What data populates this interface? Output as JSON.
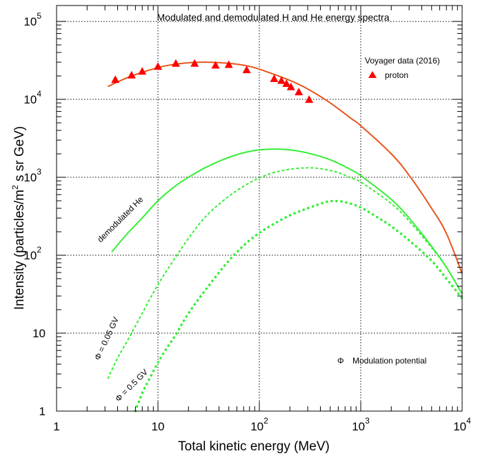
{
  "chart_data": {
    "type": "line",
    "title": "Modulated and demodulated H and He energy spectra",
    "xlabel": "Total kinetic energy (MeV)",
    "ylabel": "Intensity (particles/m² s sr GeV)",
    "x_scale": "log",
    "y_scale": "log",
    "xlim": [
      1,
      10000
    ],
    "ylim": [
      1,
      160000
    ],
    "grid": true,
    "x_ticks": [
      {
        "value": 1,
        "base": "1",
        "exp": ""
      },
      {
        "value": 10,
        "base": "10",
        "exp": ""
      },
      {
        "value": 100,
        "base": "10",
        "exp": "2"
      },
      {
        "value": 1000,
        "base": "10",
        "exp": "3"
      },
      {
        "value": 10000,
        "base": "10",
        "exp": "4"
      }
    ],
    "y_ticks": [
      {
        "value": 1,
        "base": "1",
        "exp": ""
      },
      {
        "value": 10,
        "base": "10",
        "exp": ""
      },
      {
        "value": 100,
        "base": "10",
        "exp": "2"
      },
      {
        "value": 1000,
        "base": "10",
        "exp": "3"
      },
      {
        "value": 10000,
        "base": "10",
        "exp": "4"
      },
      {
        "value": 100000,
        "base": "10",
        "exp": "5"
      }
    ],
    "legend": {
      "title": "Voyager data (2016)",
      "entries": [
        "proton"
      ],
      "placement": "top-right"
    },
    "annotations": {
      "demodulated_he": "demodulated He",
      "phi_005": "Φ = 0.05 GV",
      "phi_05": "Φ = 0.5 GV",
      "phi_symbol": "Φ",
      "modulation_note": "Modulation potential"
    },
    "colors": {
      "proton": "#e8531a",
      "marker": "#ff0000",
      "helium": "#33ee33"
    },
    "series": [
      {
        "name": "proton",
        "kind": "markers",
        "x": [
          3.8,
          5.5,
          7,
          10,
          15,
          23,
          37,
          50,
          75,
          140,
          165,
          185,
          205,
          245,
          310
        ],
        "y": [
          18000,
          20500,
          23000,
          26500,
          29000,
          29000,
          27500,
          28000,
          24000,
          18500,
          17500,
          16000,
          14500,
          12500,
          10000
        ]
      },
      {
        "name": "proton",
        "kind": "line",
        "style": "solid",
        "x": [
          3.2,
          5,
          8,
          12,
          20,
          30,
          50,
          80,
          120,
          200,
          300,
          500,
          800,
          1000,
          2000,
          3000,
          5000,
          7000,
          10000
        ],
        "y": [
          14600,
          19000,
          23500,
          27000,
          29500,
          30000,
          29000,
          26500,
          22500,
          17500,
          13600,
          9000,
          5700,
          4600,
          2000,
          1060,
          400,
          190,
          58
        ]
      },
      {
        "name": "demodulated He",
        "kind": "line",
        "style": "solid",
        "x": [
          3.5,
          5,
          7,
          10,
          15,
          20,
          30,
          50,
          80,
          130,
          200,
          300,
          500,
          800,
          1000,
          2000,
          3000,
          5000,
          7000,
          10000
        ],
        "y": [
          110,
          190,
          300,
          500,
          780,
          1000,
          1350,
          1800,
          2150,
          2300,
          2250,
          2050,
          1680,
          1250,
          1050,
          520,
          300,
          130,
          70,
          32
        ]
      },
      {
        "name": "Φ = 0.05 GV",
        "kind": "line",
        "style": "dashed",
        "x": [
          3.2,
          4,
          5,
          7,
          10,
          15,
          20,
          30,
          50,
          80,
          120,
          180,
          280,
          400,
          600,
          800,
          1000,
          2000,
          3000,
          5000,
          7000,
          10000
        ],
        "y": [
          2.6,
          4.8,
          8,
          18,
          42,
          95,
          165,
          320,
          570,
          850,
          1080,
          1240,
          1320,
          1290,
          1150,
          980,
          870,
          460,
          275,
          125,
          70,
          32
        ]
      },
      {
        "name": "Φ = 0.5 GV",
        "kind": "line",
        "style": "dotted",
        "x": [
          6,
          7,
          8,
          10,
          12,
          15,
          20,
          30,
          50,
          80,
          120,
          200,
          300,
          450,
          550,
          700,
          1000,
          1500,
          2000,
          3000,
          5000,
          7000,
          10000
        ],
        "y": [
          1,
          1.7,
          2.4,
          4.2,
          6.2,
          9.6,
          18,
          37,
          85,
          155,
          225,
          325,
          400,
          480,
          495,
          480,
          410,
          300,
          235,
          155,
          85,
          50,
          28
        ]
      }
    ]
  }
}
